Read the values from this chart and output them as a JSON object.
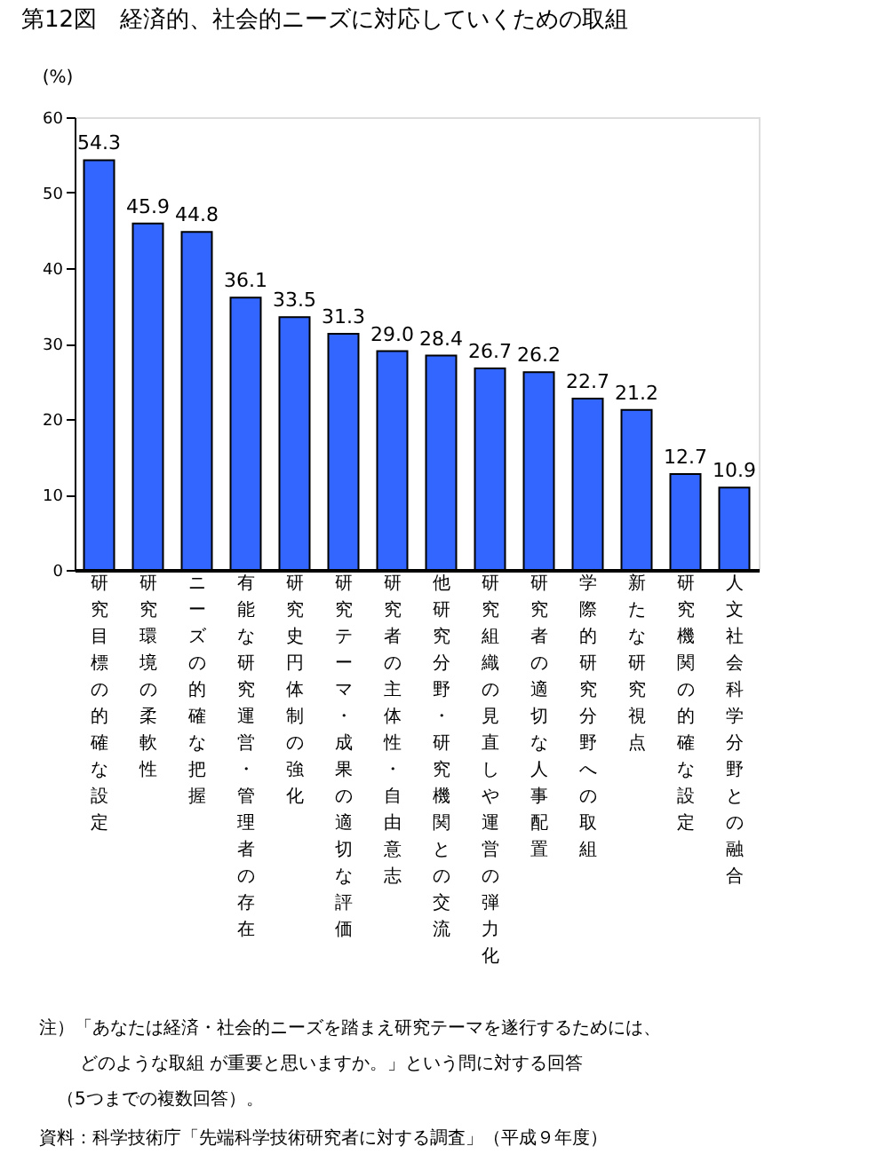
{
  "chart_data": {
    "type": "bar",
    "title": "第12図　経済的、社会的ニーズに対応していくための取組",
    "ylabel": "(%)",
    "categories": [
      "研究目標の的確な設定",
      "研究環境の柔軟性",
      "ニーズの的確な把握",
      "有能な研究運営・管理者の存在",
      "研究史円体制の強化",
      "研究テーマ・成果の適切な評価",
      "研究者の主体性・自由意志",
      "他研究分野・研究機関との交流",
      "研究組織の見直しや運営の弾力化",
      "研究者の適切な人事配置",
      "学際的研究分野への取組",
      "新たな研究視点",
      "研究機関の的確な設定",
      "人文社会科学分野との融合"
    ],
    "values": [
      54.3,
      45.9,
      44.8,
      36.1,
      33.5,
      31.3,
      29.0,
      28.4,
      26.7,
      26.2,
      22.7,
      21.2,
      12.7,
      10.9
    ],
    "value_labels": [
      "54.3",
      "45.9",
      "44.8",
      "36.1",
      "33.5",
      "31.3",
      "29.0",
      "28.4",
      "26.7",
      "26.2",
      "22.7",
      "21.2",
      "12.7",
      "10.9"
    ],
    "color": "#3366ff",
    "ylim": [
      0,
      60
    ],
    "yticks": [
      0,
      10,
      20,
      30,
      40,
      50,
      60
    ],
    "grid": false,
    "annotations": [
      "注）「あなたは経済・社会的ニーズを踏まえ研究テーマを遂行するためには、",
      "どのような取組 が重要と思いますか。」という問に対する回答",
      "（5つまでの複数回答）。",
      "資料：科学技術庁「先端科学技術研究者に対する調査」（平成９年度）"
    ]
  }
}
